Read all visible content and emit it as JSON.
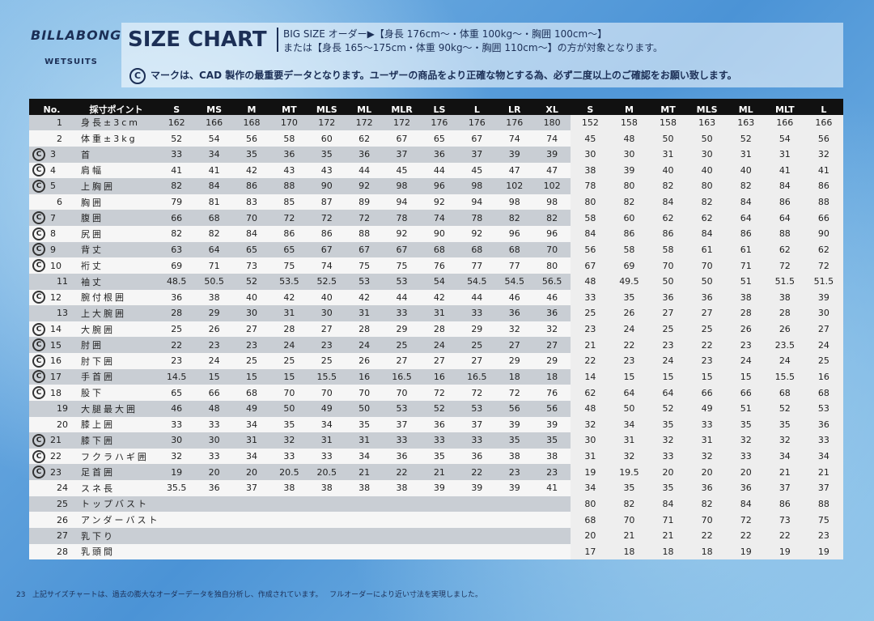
{
  "header": {
    "brand": "BILLABONG",
    "sub_brand": "WETSUITS",
    "title": "SIZE CHART",
    "lines": [
      "BIG SIZE オーダー▶【身長 176cm〜・体重 100kg〜・胸囲 100cm〜】",
      "または【身長 165〜175cm・体重 90kg〜・胸囲 110cm〜】の方が対象となります。"
    ],
    "note": "マークは、CAD 製作の最重要データとなります。ユーザーの商品をより正確な物とする為、必ず二度以上のご確認をお願い致します。"
  },
  "table": {
    "header": [
      "No.",
      "採寸ポイント"
    ],
    "left_sizes": [
      "S",
      "MS",
      "M",
      "MT",
      "MLS",
      "ML",
      "MLR",
      "LS",
      "L",
      "LR",
      "XL"
    ],
    "right_sizes": [
      "S",
      "M",
      "MT",
      "MLS",
      "ML",
      "MLT",
      "L"
    ],
    "rows": [
      {
        "no": 1,
        "name": "身長±3cm",
        "cad": false,
        "left": [
          162,
          166,
          168,
          170,
          172,
          172,
          172,
          176,
          176,
          176,
          180
        ],
        "right": [
          152,
          158,
          158,
          163,
          163,
          166,
          166
        ]
      },
      {
        "no": 2,
        "name": "体重±3kg",
        "cad": false,
        "left": [
          52,
          54,
          56,
          58,
          60,
          62,
          67,
          65,
          67,
          74,
          74
        ],
        "right": [
          45,
          48,
          50,
          50,
          52,
          54,
          56
        ]
      },
      {
        "no": 3,
        "name": "首",
        "cad": true,
        "left": [
          33,
          34,
          35,
          36,
          35,
          36,
          37,
          36,
          37,
          39,
          39
        ],
        "right": [
          30,
          30,
          31,
          30,
          31,
          31,
          32
        ]
      },
      {
        "no": 4,
        "name": "肩幅",
        "cad": true,
        "left": [
          41,
          41,
          42,
          43,
          43,
          44,
          45,
          44,
          45,
          47,
          47
        ],
        "right": [
          38,
          39,
          40,
          40,
          40,
          41,
          41
        ]
      },
      {
        "no": 5,
        "name": "上胸囲",
        "cad": true,
        "left": [
          82,
          84,
          86,
          88,
          90,
          92,
          98,
          96,
          98,
          102,
          102
        ],
        "right": [
          78,
          80,
          82,
          80,
          82,
          84,
          86
        ]
      },
      {
        "no": 6,
        "name": "胸囲",
        "cad": false,
        "left": [
          79,
          81,
          83,
          85,
          87,
          89,
          94,
          92,
          94,
          98,
          98
        ],
        "right": [
          80,
          82,
          84,
          82,
          84,
          86,
          88
        ]
      },
      {
        "no": 7,
        "name": "腹囲",
        "cad": true,
        "left": [
          66,
          68,
          70,
          72,
          72,
          72,
          78,
          74,
          78,
          82,
          82
        ],
        "right": [
          58,
          60,
          62,
          62,
          64,
          64,
          66
        ]
      },
      {
        "no": 8,
        "name": "尻囲",
        "cad": true,
        "left": [
          82,
          82,
          84,
          86,
          86,
          88,
          92,
          90,
          92,
          96,
          96
        ],
        "right": [
          84,
          86,
          86,
          84,
          86,
          88,
          90
        ]
      },
      {
        "no": 9,
        "name": "背丈",
        "cad": true,
        "left": [
          63,
          64,
          65,
          65,
          67,
          67,
          67,
          68,
          68,
          68,
          70
        ],
        "right": [
          56,
          58,
          58,
          61,
          61,
          62,
          62
        ]
      },
      {
        "no": 10,
        "name": "裄丈",
        "cad": true,
        "left": [
          69,
          71,
          73,
          75,
          74,
          75,
          75,
          76,
          77,
          77,
          80
        ],
        "right": [
          67,
          69,
          70,
          70,
          71,
          72,
          72
        ]
      },
      {
        "no": 11,
        "name": "袖丈",
        "cad": false,
        "left": [
          48.5,
          50.5,
          52,
          53.5,
          52.5,
          53,
          53,
          54,
          54.5,
          54.5,
          56.5
        ],
        "right": [
          48,
          49.5,
          50,
          50,
          51,
          51.5,
          51.5
        ]
      },
      {
        "no": 12,
        "name": "腕付根囲",
        "cad": true,
        "left": [
          36,
          38,
          40,
          42,
          40,
          42,
          44,
          42,
          44,
          46,
          46
        ],
        "right": [
          33,
          35,
          36,
          36,
          38,
          38,
          39
        ]
      },
      {
        "no": 13,
        "name": "上大腕囲",
        "cad": false,
        "left": [
          28,
          29,
          30,
          31,
          30,
          31,
          33,
          31,
          33,
          36,
          36
        ],
        "right": [
          25,
          26,
          27,
          27,
          28,
          28,
          30
        ]
      },
      {
        "no": 14,
        "name": "大腕囲",
        "cad": true,
        "left": [
          25,
          26,
          27,
          28,
          27,
          28,
          29,
          28,
          29,
          32,
          32
        ],
        "right": [
          23,
          24,
          25,
          25,
          26,
          26,
          27
        ]
      },
      {
        "no": 15,
        "name": "肘囲",
        "cad": true,
        "left": [
          22,
          23,
          23,
          24,
          23,
          24,
          25,
          24,
          25,
          27,
          27
        ],
        "right": [
          21,
          22,
          23,
          22,
          23,
          23.5,
          24
        ]
      },
      {
        "no": 16,
        "name": "肘下囲",
        "cad": true,
        "left": [
          23,
          24,
          25,
          25,
          25,
          26,
          27,
          27,
          27,
          29,
          29
        ],
        "right": [
          22,
          23,
          24,
          23,
          24,
          24,
          25
        ]
      },
      {
        "no": 17,
        "name": "手首囲",
        "cad": true,
        "left": [
          14.5,
          15,
          15,
          15,
          15.5,
          16,
          16.5,
          16,
          16.5,
          18,
          18
        ],
        "right": [
          14,
          15,
          15,
          15,
          15,
          15.5,
          16
        ]
      },
      {
        "no": 18,
        "name": "股下",
        "cad": true,
        "left": [
          65,
          66,
          68,
          70,
          70,
          70,
          70,
          72,
          72,
          72,
          76
        ],
        "right": [
          62,
          64,
          64,
          66,
          66,
          68,
          68
        ]
      },
      {
        "no": 19,
        "name": "大腿最大囲",
        "cad": false,
        "left": [
          46,
          48,
          49,
          50,
          49,
          50,
          53,
          52,
          53,
          56,
          56
        ],
        "right": [
          48,
          50,
          52,
          49,
          51,
          52,
          53
        ]
      },
      {
        "no": 20,
        "name": "膝上囲",
        "cad": false,
        "left": [
          33,
          33,
          34,
          35,
          34,
          35,
          37,
          36,
          37,
          39,
          39
        ],
        "right": [
          32,
          34,
          35,
          33,
          35,
          35,
          36
        ]
      },
      {
        "no": 21,
        "name": "膝下囲",
        "cad": true,
        "left": [
          30,
          30,
          31,
          32,
          31,
          31,
          33,
          33,
          33,
          35,
          35
        ],
        "right": [
          30,
          31,
          32,
          31,
          32,
          32,
          33
        ]
      },
      {
        "no": 22,
        "name": "フクラハギ囲",
        "cad": true,
        "left": [
          32,
          33,
          34,
          33,
          33,
          34,
          36,
          35,
          36,
          38,
          38
        ],
        "right": [
          31,
          32,
          33,
          32,
          33,
          34,
          34
        ]
      },
      {
        "no": 23,
        "name": "足首囲",
        "cad": true,
        "left": [
          19,
          20,
          20,
          20.5,
          20.5,
          21,
          22,
          21,
          22,
          23,
          23
        ],
        "right": [
          19,
          19.5,
          20,
          20,
          20,
          21,
          21
        ]
      },
      {
        "no": 24,
        "name": "スネ長",
        "cad": false,
        "left": [
          35.5,
          36,
          37,
          38,
          38,
          38,
          38,
          39,
          39,
          39,
          41
        ],
        "right": [
          34,
          35,
          35,
          36,
          36,
          37,
          37
        ]
      },
      {
        "no": 25,
        "name": "トップバスト",
        "cad": false,
        "left": [],
        "right": [
          80,
          82,
          84,
          82,
          84,
          86,
          88
        ]
      },
      {
        "no": 26,
        "name": "アンダーバスト",
        "cad": false,
        "left": [],
        "right": [
          68,
          70,
          71,
          70,
          72,
          73,
          75
        ]
      },
      {
        "no": 27,
        "name": "乳下り",
        "cad": false,
        "left": [],
        "right": [
          20,
          21,
          21,
          22,
          22,
          22,
          23
        ]
      },
      {
        "no": 28,
        "name": "乳頭間",
        "cad": false,
        "left": [],
        "right": [
          17,
          18,
          18,
          18,
          19,
          19,
          19
        ]
      }
    ]
  },
  "footer": {
    "page": "23",
    "text": "上記サイズチャートは、過去の膨大なオーダーデータを独自分析し、作成されています。",
    "text2": "フルオーダーにより近い寸法を実現しました。"
  }
}
